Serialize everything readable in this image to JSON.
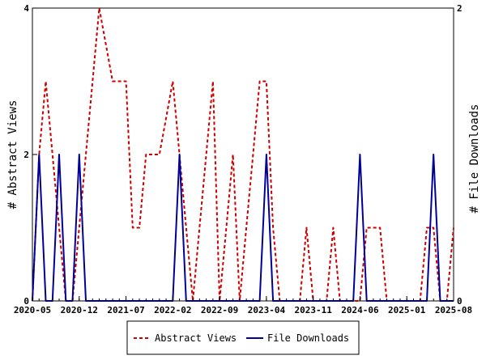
{
  "chart_data": {
    "type": "line",
    "ylabel": "# Abstract Views",
    "y2label": "# File Downloads",
    "ylim": [
      0,
      4
    ],
    "y2lim": [
      0,
      2
    ],
    "yticks": [
      "0",
      "2",
      "4"
    ],
    "y2ticks": [
      "0",
      "2"
    ],
    "xtick_labels": [
      "2020-05",
      "2020-12",
      "2021-07",
      "2022-02",
      "2022-09",
      "2023-04",
      "2023-11",
      "2024-06",
      "2025-01",
      "2025-08"
    ],
    "x_range": [
      "2020-05",
      "2025-08"
    ],
    "legend_position": "bottom",
    "series": [
      {
        "name": "Abstract Views",
        "axis": "left",
        "color": "#cc0000",
        "style": "dashed",
        "points": [
          [
            "2020-05",
            0
          ],
          [
            "2020-06",
            2
          ],
          [
            "2020-07",
            3
          ],
          [
            "2020-08",
            2
          ],
          [
            "2020-09",
            1
          ],
          [
            "2020-10",
            0
          ],
          [
            "2020-11",
            0
          ],
          [
            "2020-12",
            1
          ],
          [
            "2021-01",
            2
          ],
          [
            "2021-02",
            3
          ],
          [
            "2021-03",
            4
          ],
          [
            "2021-04",
            3.5
          ],
          [
            "2021-05",
            3
          ],
          [
            "2021-06",
            3
          ],
          [
            "2021-07",
            3
          ],
          [
            "2021-08",
            1
          ],
          [
            "2021-09",
            1
          ],
          [
            "2021-10",
            2
          ],
          [
            "2021-11",
            2
          ],
          [
            "2021-12",
            2
          ],
          [
            "2022-01",
            2.5
          ],
          [
            "2022-02",
            3
          ],
          [
            "2022-03",
            2
          ],
          [
            "2022-04",
            1
          ],
          [
            "2022-05",
            0
          ],
          [
            "2022-06",
            1
          ],
          [
            "2022-07",
            2
          ],
          [
            "2022-08",
            3
          ],
          [
            "2022-09",
            0
          ],
          [
            "2022-10",
            1
          ],
          [
            "2022-11",
            2
          ],
          [
            "2022-12",
            0
          ],
          [
            "2023-01",
            1
          ],
          [
            "2023-02",
            2
          ],
          [
            "2023-03",
            3
          ],
          [
            "2023-04",
            3
          ],
          [
            "2023-05",
            1
          ],
          [
            "2023-06",
            0
          ],
          [
            "2023-07",
            0
          ],
          [
            "2023-08",
            0
          ],
          [
            "2023-09",
            0
          ],
          [
            "2023-10",
            1
          ],
          [
            "2023-11",
            0
          ],
          [
            "2023-12",
            0
          ],
          [
            "2024-01",
            0
          ],
          [
            "2024-02",
            1
          ],
          [
            "2024-03",
            0
          ],
          [
            "2024-04",
            0
          ],
          [
            "2024-05",
            0
          ],
          [
            "2024-06",
            0
          ],
          [
            "2024-07",
            1
          ],
          [
            "2024-08",
            1
          ],
          [
            "2024-09",
            1
          ],
          [
            "2024-10",
            0
          ],
          [
            "2024-11",
            0
          ],
          [
            "2024-12",
            0
          ],
          [
            "2025-01",
            0
          ],
          [
            "2025-02",
            0
          ],
          [
            "2025-03",
            0
          ],
          [
            "2025-04",
            1
          ],
          [
            "2025-05",
            1
          ],
          [
            "2025-06",
            0
          ],
          [
            "2025-07",
            0
          ],
          [
            "2025-08",
            1
          ]
        ]
      },
      {
        "name": "File Downloads",
        "axis": "right",
        "color": "#000099",
        "style": "solid",
        "points": [
          [
            "2020-05",
            0
          ],
          [
            "2020-06",
            1
          ],
          [
            "2020-07",
            0
          ],
          [
            "2020-08",
            0
          ],
          [
            "2020-09",
            1
          ],
          [
            "2020-10",
            0
          ],
          [
            "2020-11",
            0
          ],
          [
            "2020-12",
            1
          ],
          [
            "2021-01",
            0
          ],
          [
            "2021-02",
            0
          ],
          [
            "2021-03",
            0
          ],
          [
            "2021-04",
            0
          ],
          [
            "2021-05",
            0
          ],
          [
            "2021-06",
            0
          ],
          [
            "2021-07",
            0
          ],
          [
            "2021-08",
            0
          ],
          [
            "2021-09",
            0
          ],
          [
            "2021-10",
            0
          ],
          [
            "2021-11",
            0
          ],
          [
            "2021-12",
            0
          ],
          [
            "2022-01",
            0
          ],
          [
            "2022-02",
            0
          ],
          [
            "2022-03",
            1
          ],
          [
            "2022-04",
            0
          ],
          [
            "2022-05",
            0
          ],
          [
            "2022-06",
            0
          ],
          [
            "2022-07",
            0
          ],
          [
            "2022-08",
            0
          ],
          [
            "2022-09",
            0
          ],
          [
            "2022-10",
            0
          ],
          [
            "2022-11",
            0
          ],
          [
            "2022-12",
            0
          ],
          [
            "2023-01",
            0
          ],
          [
            "2023-02",
            0
          ],
          [
            "2023-03",
            0
          ],
          [
            "2023-04",
            1
          ],
          [
            "2023-05",
            0
          ],
          [
            "2023-06",
            0
          ],
          [
            "2023-07",
            0
          ],
          [
            "2023-08",
            0
          ],
          [
            "2023-09",
            0
          ],
          [
            "2023-10",
            0
          ],
          [
            "2023-11",
            0
          ],
          [
            "2023-12",
            0
          ],
          [
            "2024-01",
            0
          ],
          [
            "2024-02",
            0
          ],
          [
            "2024-03",
            0
          ],
          [
            "2024-04",
            0
          ],
          [
            "2024-05",
            0
          ],
          [
            "2024-06",
            1
          ],
          [
            "2024-07",
            0
          ],
          [
            "2024-08",
            0
          ],
          [
            "2024-09",
            0
          ],
          [
            "2024-10",
            0
          ],
          [
            "2024-11",
            0
          ],
          [
            "2024-12",
            0
          ],
          [
            "2025-01",
            0
          ],
          [
            "2025-02",
            0
          ],
          [
            "2025-03",
            0
          ],
          [
            "2025-04",
            0
          ],
          [
            "2025-05",
            1
          ],
          [
            "2025-06",
            0
          ],
          [
            "2025-07",
            0
          ],
          [
            "2025-08",
            0
          ]
        ]
      }
    ]
  }
}
